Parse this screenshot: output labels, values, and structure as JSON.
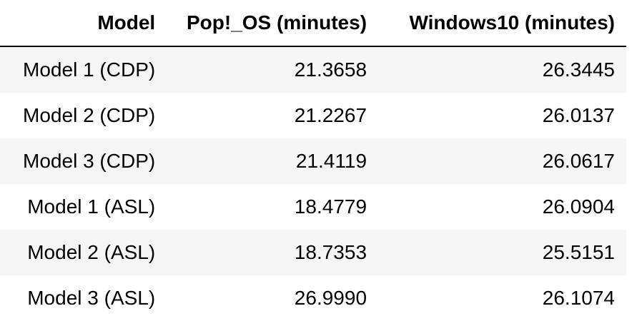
{
  "table": {
    "headers": {
      "model": "Model",
      "pop_os": "Pop!_OS (minutes)",
      "windows10": "Windows10 (minutes)"
    },
    "rows": [
      {
        "model": "Model 1 (CDP)",
        "pop_os": "21.3658",
        "windows10": "26.3445"
      },
      {
        "model": "Model 2 (CDP)",
        "pop_os": "21.2267",
        "windows10": "26.0137"
      },
      {
        "model": "Model 3 (CDP)",
        "pop_os": "21.4119",
        "windows10": "26.0617"
      },
      {
        "model": "Model 1 (ASL)",
        "pop_os": "18.4779",
        "windows10": "26.0904"
      },
      {
        "model": "Model 2 (ASL)",
        "pop_os": "18.7353",
        "windows10": "25.5151"
      },
      {
        "model": "Model 3 (ASL)",
        "pop_os": "26.9990",
        "windows10": "26.1074"
      }
    ]
  },
  "colors": {
    "stripe": "#f5f5f5",
    "background": "#ffffff",
    "text": "#000000"
  }
}
